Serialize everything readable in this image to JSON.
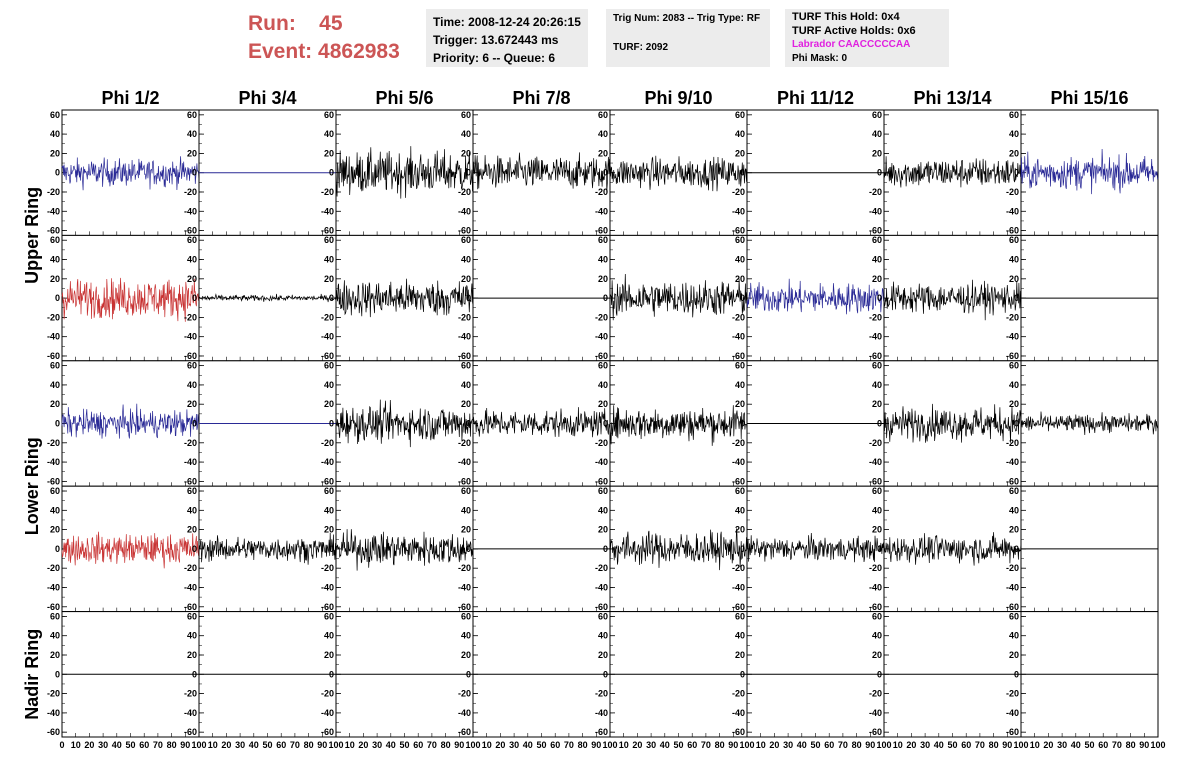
{
  "header": {
    "run_label": "Run:",
    "run_value": "45",
    "event_label": "Event:",
    "event_value": "4862983",
    "time": "Time: 2008-12-24 20:26:15",
    "trigger": "Trigger: 13.672443 ms",
    "priority": "Priority: 6 -- Queue: 6",
    "trig_num": "Trig Num: 2083 -- Trig Type: RF",
    "turf": "TURF: 2092",
    "turf_this_hold": "TURF This Hold: 0x4",
    "turf_active_holds": "TURF Active Holds: 0x6",
    "labrador": "Labrador CAACCCCCAA",
    "phi_mask": "Phi Mask: 0",
    "labrador_color": "#e020e0",
    "run_color": "#cc5555"
  },
  "chart_data": {
    "type": "line",
    "columns": [
      "Phi 1/2",
      "Phi 3/4",
      "Phi 5/6",
      "Phi 7/8",
      "Phi 9/10",
      "Phi 11/12",
      "Phi 13/14",
      "Phi 15/16"
    ],
    "ring_labels": [
      "Upper Ring",
      "Lower Ring",
      "Nadir Ring"
    ],
    "xlim": [
      0,
      100
    ],
    "ylim": [
      -65,
      65
    ],
    "x_ticks": [
      "0",
      "10",
      "20",
      "30",
      "40",
      "50",
      "60",
      "70",
      "80",
      "90",
      "100"
    ],
    "y_ticks": [
      "60",
      "40",
      "20",
      "0",
      "-20",
      "-40",
      "-60"
    ],
    "series_colors": {
      "blue": "#2a2a96",
      "red": "#c83232",
      "black": "#000000"
    },
    "panel_rows": [
      [
        {
          "color": "blue",
          "amplitude": 18,
          "flat": false
        },
        {
          "color": "blue",
          "amplitude": 0,
          "flat": true
        },
        {
          "color": "black",
          "amplitude": 28,
          "flat": false
        },
        {
          "color": "black",
          "amplitude": 22,
          "flat": false
        },
        {
          "color": "black",
          "amplitude": 20,
          "flat": false
        },
        {
          "color": "black",
          "amplitude": 0,
          "flat": true
        },
        {
          "color": "black",
          "amplitude": 20,
          "flat": false
        },
        {
          "color": "blue",
          "amplitude": 22,
          "flat": false
        }
      ],
      [
        {
          "color": "red",
          "amplitude": 26,
          "flat": false
        },
        {
          "color": "black",
          "amplitude": 4,
          "flat": false
        },
        {
          "color": "black",
          "amplitude": 24,
          "flat": false
        },
        {
          "color": "black",
          "amplitude": 0,
          "flat": true
        },
        {
          "color": "black",
          "amplitude": 24,
          "flat": false
        },
        {
          "color": "blue",
          "amplitude": 20,
          "flat": false
        },
        {
          "color": "black",
          "amplitude": 20,
          "flat": false
        },
        {
          "color": "black",
          "amplitude": 0,
          "flat": true
        }
      ],
      [
        {
          "color": "blue",
          "amplitude": 18,
          "flat": false
        },
        {
          "color": "blue",
          "amplitude": 0,
          "flat": true
        },
        {
          "color": "black",
          "amplitude": 24,
          "flat": false
        },
        {
          "color": "black",
          "amplitude": 18,
          "flat": false
        },
        {
          "color": "black",
          "amplitude": 22,
          "flat": false
        },
        {
          "color": "black",
          "amplitude": 0,
          "flat": true
        },
        {
          "color": "black",
          "amplitude": 22,
          "flat": false
        },
        {
          "color": "black",
          "amplitude": 12,
          "flat": false
        }
      ],
      [
        {
          "color": "red",
          "amplitude": 20,
          "flat": false
        },
        {
          "color": "black",
          "amplitude": 16,
          "flat": false
        },
        {
          "color": "black",
          "amplitude": 22,
          "flat": false
        },
        {
          "color": "black",
          "amplitude": 0,
          "flat": true
        },
        {
          "color": "black",
          "amplitude": 22,
          "flat": false
        },
        {
          "color": "black",
          "amplitude": 16,
          "flat": false
        },
        {
          "color": "black",
          "amplitude": 18,
          "flat": false
        },
        {
          "color": "black",
          "amplitude": 0,
          "flat": true
        }
      ],
      [
        {
          "color": "black",
          "amplitude": 0,
          "flat": true
        },
        {
          "color": "black",
          "amplitude": 0,
          "flat": true
        },
        {
          "color": "black",
          "amplitude": 0,
          "flat": true
        },
        {
          "color": "black",
          "amplitude": 0,
          "flat": true
        },
        {
          "color": "black",
          "amplitude": 0,
          "flat": true
        },
        {
          "color": "black",
          "amplitude": 0,
          "flat": true
        },
        {
          "color": "black",
          "amplitude": 0,
          "flat": true
        },
        {
          "color": "black",
          "amplitude": 0,
          "flat": true
        }
      ]
    ]
  }
}
